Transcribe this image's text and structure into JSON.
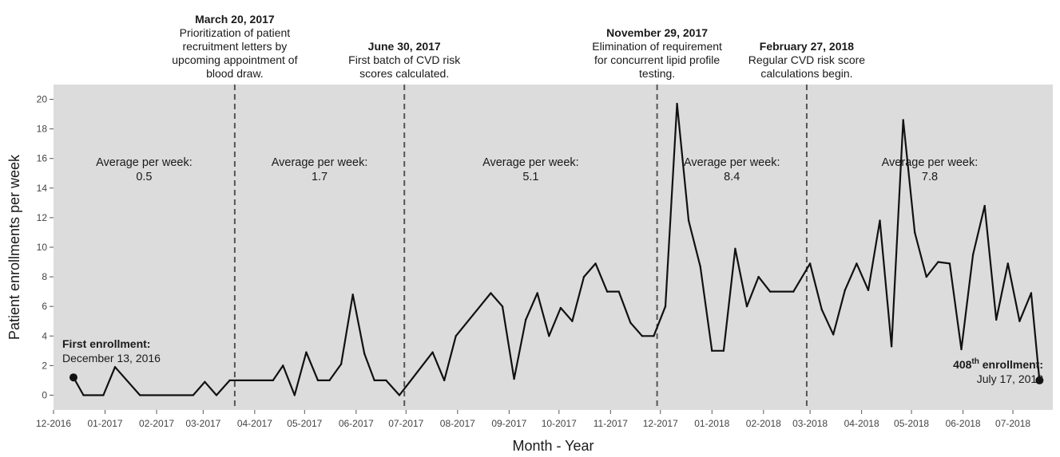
{
  "chart_data": {
    "type": "line",
    "title": "",
    "xlabel": "Month - Year",
    "ylabel": "Patient enrollments per week",
    "ylim": [
      -1,
      21
    ],
    "xlim": [
      "2016-12-01",
      "2018-07-25"
    ],
    "yticks": [
      0,
      2,
      4,
      6,
      8,
      10,
      12,
      14,
      16,
      18,
      20
    ],
    "xticks": [
      {
        "date": "2016-12-01",
        "label": "12-2016"
      },
      {
        "date": "2017-01-01",
        "label": "01-2017"
      },
      {
        "date": "2017-02-01",
        "label": "02-2017"
      },
      {
        "date": "2017-03-01",
        "label": "03-2017"
      },
      {
        "date": "2017-04-01",
        "label": "04-2017"
      },
      {
        "date": "2017-05-01",
        "label": "05-2017"
      },
      {
        "date": "2017-06-01",
        "label": "06-2017"
      },
      {
        "date": "2017-07-01",
        "label": "07-2017"
      },
      {
        "date": "2017-08-01",
        "label": "08-2017"
      },
      {
        "date": "2017-09-01",
        "label": "09-2017"
      },
      {
        "date": "2017-10-01",
        "label": "10-2017"
      },
      {
        "date": "2017-11-01",
        "label": "11-2017"
      },
      {
        "date": "2017-12-01",
        "label": "12-2017"
      },
      {
        "date": "2018-01-01",
        "label": "01-2018"
      },
      {
        "date": "2018-02-01",
        "label": "02-2018"
      },
      {
        "date": "2018-03-01",
        "label": "03-2018"
      },
      {
        "date": "2018-04-01",
        "label": "04-2018"
      },
      {
        "date": "2018-05-01",
        "label": "05-2018"
      },
      {
        "date": "2018-06-01",
        "label": "06-2018"
      },
      {
        "date": "2018-07-01",
        "label": "07-2018"
      }
    ],
    "grid": false,
    "background": "#dcdcdc",
    "line_color": "#111111",
    "series": [
      {
        "points": [
          [
            "2016-12-13",
            1.2
          ],
          [
            "2016-12-19",
            0.0
          ],
          [
            "2016-12-31",
            0.0
          ],
          [
            "2017-01-07",
            1.9
          ],
          [
            "2017-01-22",
            0.0
          ],
          [
            "2017-02-23",
            0.0
          ],
          [
            "2017-03-02",
            0.9
          ],
          [
            "2017-03-09",
            0.0
          ],
          [
            "2017-03-17",
            1.0
          ],
          [
            "2017-04-12",
            1.0
          ],
          [
            "2017-04-18",
            2.0
          ],
          [
            "2017-04-25",
            0.0
          ],
          [
            "2017-05-02",
            2.9
          ],
          [
            "2017-05-09",
            1.0
          ],
          [
            "2017-05-16",
            1.0
          ],
          [
            "2017-05-23",
            2.1
          ],
          [
            "2017-05-30",
            6.8
          ],
          [
            "2017-06-06",
            2.8
          ],
          [
            "2017-06-12",
            1.0
          ],
          [
            "2017-06-19",
            1.0
          ],
          [
            "2017-06-27",
            0.0
          ],
          [
            "2017-07-17",
            2.9
          ],
          [
            "2017-07-24",
            1.0
          ],
          [
            "2017-07-31",
            4.0
          ],
          [
            "2017-08-21",
            6.9
          ],
          [
            "2017-08-28",
            6.0
          ],
          [
            "2017-09-04",
            1.1
          ],
          [
            "2017-09-11",
            5.1
          ],
          [
            "2017-09-18",
            6.9
          ],
          [
            "2017-09-25",
            4.0
          ],
          [
            "2017-10-02",
            5.9
          ],
          [
            "2017-10-09",
            5.0
          ],
          [
            "2017-10-16",
            8.0
          ],
          [
            "2017-10-23",
            8.9
          ],
          [
            "2017-10-30",
            7.0
          ],
          [
            "2017-11-06",
            7.0
          ],
          [
            "2017-11-13",
            4.9
          ],
          [
            "2017-11-20",
            4.0
          ],
          [
            "2017-11-27",
            4.0
          ],
          [
            "2017-12-04",
            6.0
          ],
          [
            "2017-12-11",
            19.7
          ],
          [
            "2017-12-18",
            11.8
          ],
          [
            "2017-12-25",
            8.7
          ],
          [
            "2018-01-01",
            3.0
          ],
          [
            "2018-01-08",
            3.0
          ],
          [
            "2018-01-15",
            9.9
          ],
          [
            "2018-01-22",
            6.0
          ],
          [
            "2018-01-29",
            8.0
          ],
          [
            "2018-02-05",
            7.0
          ],
          [
            "2018-02-19",
            7.0
          ],
          [
            "2018-03-01",
            8.9
          ],
          [
            "2018-03-08",
            5.8
          ],
          [
            "2018-03-15",
            4.1
          ],
          [
            "2018-03-22",
            7.1
          ],
          [
            "2018-03-29",
            8.9
          ],
          [
            "2018-04-05",
            7.1
          ],
          [
            "2018-04-12",
            11.8
          ],
          [
            "2018-04-19",
            3.3
          ],
          [
            "2018-04-26",
            18.6
          ],
          [
            "2018-05-03",
            11.0
          ],
          [
            "2018-05-10",
            8.0
          ],
          [
            "2018-05-17",
            9.0
          ],
          [
            "2018-05-24",
            8.9
          ],
          [
            "2018-05-31",
            3.1
          ],
          [
            "2018-06-07",
            9.5
          ],
          [
            "2018-06-14",
            12.8
          ],
          [
            "2018-06-21",
            5.1
          ],
          [
            "2018-06-28",
            8.9
          ],
          [
            "2018-07-05",
            5.0
          ],
          [
            "2018-07-12",
            6.9
          ],
          [
            "2018-07-17",
            1.0
          ]
        ]
      }
    ],
    "endpoints": [
      {
        "date": "2016-12-13",
        "value": 1.2
      },
      {
        "date": "2018-07-17",
        "value": 1.0
      }
    ],
    "vlines": [
      {
        "date": "2017-03-20",
        "title": "March 20, 2017",
        "lines": [
          "Prioritization of patient",
          "recruitment letters by",
          "upcoming appointment of",
          "blood draw."
        ]
      },
      {
        "date": "2017-06-30",
        "title": "June 30, 2017",
        "lines": [
          "First batch of CVD risk",
          "scores calculated."
        ]
      },
      {
        "date": "2017-11-29",
        "title": "November 29, 2017",
        "lines": [
          "Elimination of requirement",
          "for concurrent lipid profile",
          "testing."
        ]
      },
      {
        "date": "2018-02-27",
        "title": "February 27, 2018",
        "lines": [
          "Regular CVD risk score",
          "calculations begin."
        ]
      }
    ],
    "averages": [
      {
        "label": "Average per week:",
        "value": "0.5",
        "from": "2016-12-01",
        "to": "2017-03-20"
      },
      {
        "label": "Average per week:",
        "value": "1.7",
        "from": "2017-03-20",
        "to": "2017-06-30"
      },
      {
        "label": "Average per week:",
        "value": "5.1",
        "from": "2017-06-30",
        "to": "2017-11-29"
      },
      {
        "label": "Average per week:",
        "value": "8.4",
        "from": "2017-11-29",
        "to": "2018-02-27"
      },
      {
        "label": "Average per week:",
        "value": "7.8",
        "from": "2018-02-27",
        "to": "2018-07-25"
      }
    ],
    "first_enrollment": {
      "title": "First enrollment:",
      "date_text": "December 13, 2016"
    },
    "last_enrollment": {
      "number": "408",
      "suffix": "th",
      "title_rest": " enrollment:",
      "date_text": "July 17, 2018"
    }
  }
}
